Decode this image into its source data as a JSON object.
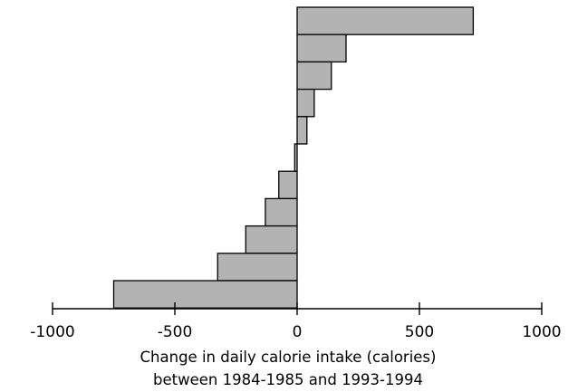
{
  "chart_data": {
    "type": "bar",
    "orientation": "horizontal",
    "values": [
      720,
      200,
      140,
      70,
      40,
      -10,
      -75,
      -130,
      -210,
      -325,
      -750
    ],
    "xlim": [
      -1000,
      1000
    ],
    "xticks": [
      -1000,
      -500,
      0,
      500,
      1000
    ],
    "xlabel_lines": [
      "Change in daily calorie intake (calories)",
      "between 1984-1985 and 1993-1994"
    ],
    "ylabel": "",
    "grid": false,
    "colors": {
      "bar_fill": "#b3b3b3",
      "bar_stroke": "#000000"
    }
  }
}
